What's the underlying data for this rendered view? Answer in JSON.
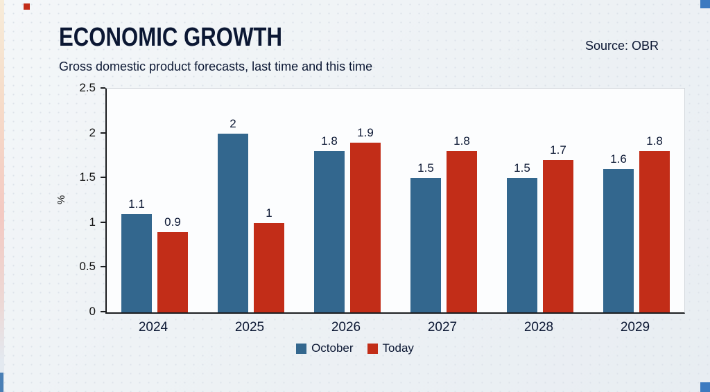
{
  "header": {
    "title": "ECONOMIC GROWTH",
    "source": "Source: OBR",
    "subtitle": "Gross domestic product forecasts, last time and this time"
  },
  "chart_data": {
    "type": "bar",
    "title": "ECONOMIC GROWTH",
    "subtitle": "Gross domestic product forecasts, last time and this time",
    "categories": [
      "2024",
      "2025",
      "2026",
      "2027",
      "2028",
      "2029"
    ],
    "series": [
      {
        "name": "October",
        "color": "#33678e",
        "values": [
          1.1,
          2,
          1.8,
          1.5,
          1.5,
          1.6
        ]
      },
      {
        "name": "Today",
        "color": "#c22d18",
        "values": [
          0.9,
          1,
          1.9,
          1.8,
          1.7,
          1.8
        ]
      }
    ],
    "xlabel": "",
    "ylabel": "%",
    "ylim": [
      0,
      2.5
    ],
    "yticks": [
      0,
      0.5,
      1,
      1.5,
      2,
      2.5
    ],
    "grid": false,
    "legend_position": "bottom",
    "source": "Source: OBR"
  }
}
